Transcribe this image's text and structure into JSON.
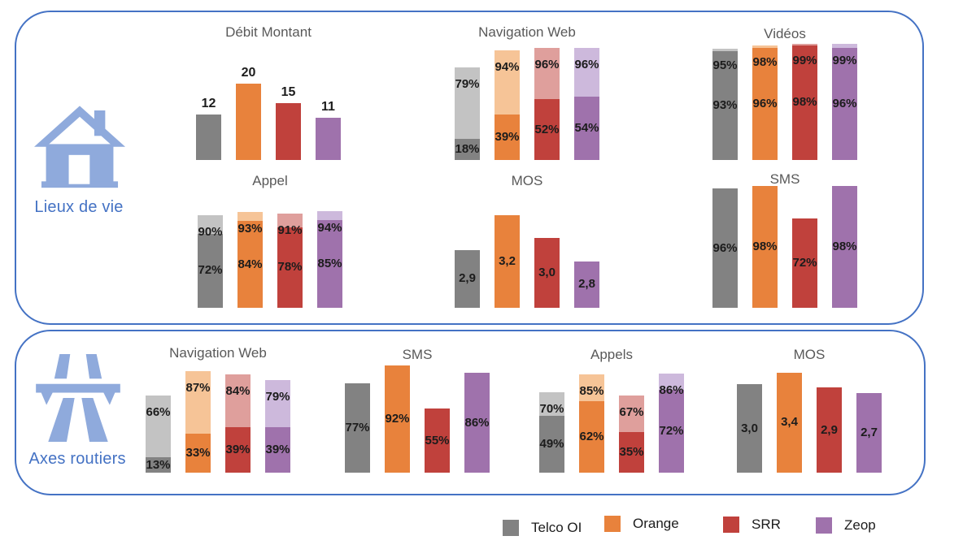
{
  "page_background": "#ffffff",
  "accent_blue": "#4472C4",
  "icon_blue": "#8FAADC",
  "sections": [
    {
      "id": "lieux-de-vie",
      "label": "Lieux de vie",
      "icon": "house-icon"
    },
    {
      "id": "axes-routiers",
      "label": "Axes routiers",
      "icon": "motorway-icon"
    }
  ],
  "legend": {
    "items": [
      {
        "label": "Telco OI",
        "color": "#828282",
        "color_light": "#C3C3C3"
      },
      {
        "label": "Orange",
        "color": "#E8823C",
        "color_light": "#F6C497"
      },
      {
        "label": "SRR",
        "color": "#C0413C",
        "color_light": "#DF9F9C"
      },
      {
        "label": "Zeop",
        "color": "#9F72AC",
        "color_light": "#CDB9DC"
      }
    ]
  },
  "chart_data": [
    {
      "id": "debit-montant",
      "section": "Lieux de vie",
      "type": "bar",
      "title": "Débit Montant",
      "categories": [
        "Telco OI",
        "Orange",
        "SRR",
        "Zeop"
      ],
      "values": [
        12,
        20,
        15,
        11
      ],
      "labels": [
        "12",
        "20",
        "15",
        "11"
      ],
      "label_position": "above",
      "ylim": [
        0,
        30
      ],
      "grid": false,
      "legend_position": "none"
    },
    {
      "id": "navigation-web-lieux",
      "section": "Lieux de vie",
      "type": "stacked-bar",
      "title": "Navigation Web",
      "categories": [
        "Telco OI",
        "Orange",
        "SRR",
        "Zeop"
      ],
      "series": [
        {
          "name": "high",
          "values": [
            79,
            94,
            96,
            96
          ],
          "labels": [
            "79%",
            "94%",
            "96%",
            "96%"
          ]
        },
        {
          "name": "low",
          "values": [
            18,
            39,
            52,
            54
          ],
          "labels": [
            "18%",
            "39%",
            "52%",
            "54%"
          ]
        }
      ],
      "ylim": [
        0,
        100
      ],
      "grid": false,
      "legend_position": "none"
    },
    {
      "id": "videos",
      "section": "Lieux de vie",
      "type": "stacked-bar",
      "title": "Vidéos",
      "categories": [
        "Telco OI",
        "Orange",
        "SRR",
        "Zeop"
      ],
      "series": [
        {
          "name": "high",
          "values": [
            95,
            98,
            99,
            99
          ],
          "labels": [
            "95%",
            "98%",
            "99%",
            "99%"
          ]
        },
        {
          "name": "low",
          "values": [
            93,
            96,
            98,
            96
          ],
          "labels": [
            "93%",
            "96%",
            "98%",
            "96%"
          ]
        }
      ],
      "ylim": [
        0,
        100
      ],
      "grid": false,
      "legend_position": "none"
    },
    {
      "id": "appel",
      "section": "Lieux de vie",
      "type": "stacked-bar",
      "title": "Appel",
      "categories": [
        "Telco OI",
        "Orange",
        "SRR",
        "Zeop"
      ],
      "series": [
        {
          "name": "high",
          "values": [
            90,
            93,
            91,
            94
          ],
          "labels": [
            "90%",
            "93%",
            "91%",
            "94%"
          ]
        },
        {
          "name": "low",
          "values": [
            72,
            84,
            78,
            85
          ],
          "labels": [
            "72%",
            "84%",
            "78%",
            "85%"
          ]
        }
      ],
      "ylim": [
        0,
        100
      ],
      "grid": false,
      "legend_position": "none"
    },
    {
      "id": "mos-lieux",
      "section": "Lieux de vie",
      "type": "bar",
      "title": "MOS",
      "categories": [
        "Telco OI",
        "Orange",
        "SRR",
        "Zeop"
      ],
      "values": [
        2.9,
        3.2,
        3.0,
        2.8
      ],
      "labels": [
        "2,9",
        "3,2",
        "3,0",
        "2,8"
      ],
      "label_position": "center",
      "ylim": [
        2.4,
        3.45
      ],
      "grid": false,
      "legend_position": "none"
    },
    {
      "id": "sms-lieux",
      "section": "Lieux de vie",
      "type": "bar",
      "title": "SMS",
      "categories": [
        "Telco OI",
        "Orange",
        "SRR",
        "Zeop"
      ],
      "values": [
        96,
        98,
        72,
        98
      ],
      "labels": [
        "96%",
        "98%",
        "72%",
        "98%"
      ],
      "label_position": "center",
      "ylim": [
        0,
        100
      ],
      "grid": false,
      "legend_position": "none"
    },
    {
      "id": "navigation-web-axes",
      "section": "Axes routiers",
      "type": "stacked-bar",
      "title": "Navigation Web",
      "categories": [
        "Telco OI",
        "Orange",
        "SRR",
        "Zeop"
      ],
      "series": [
        {
          "name": "high",
          "values": [
            66,
            87,
            84,
            79
          ],
          "labels": [
            "66%",
            "87%",
            "84%",
            "79%"
          ]
        },
        {
          "name": "low",
          "values": [
            13,
            33,
            39,
            39
          ],
          "labels": [
            "13%",
            "33%",
            "39%",
            "39%"
          ]
        }
      ],
      "ylim": [
        0,
        100
      ],
      "grid": false,
      "legend_position": "none"
    },
    {
      "id": "sms-axes",
      "section": "Axes routiers",
      "type": "bar",
      "title": "SMS",
      "categories": [
        "Telco OI",
        "Orange",
        "SRR",
        "Zeop"
      ],
      "values": [
        77,
        92,
        55,
        86
      ],
      "labels": [
        "77%",
        "92%",
        "55%",
        "86%"
      ],
      "label_position": "center",
      "ylim": [
        0,
        100
      ],
      "grid": false,
      "legend_position": "none"
    },
    {
      "id": "appels-axes",
      "section": "Axes routiers",
      "type": "stacked-bar",
      "title": "Appels",
      "categories": [
        "Telco OI",
        "Orange",
        "SRR",
        "Zeop"
      ],
      "series": [
        {
          "name": "high",
          "values": [
            70,
            85,
            67,
            86
          ],
          "labels": [
            "70%",
            "85%",
            "67%",
            "86%"
          ]
        },
        {
          "name": "low",
          "values": [
            49,
            62,
            35,
            72
          ],
          "labels": [
            "49%",
            "62%",
            "35%",
            "72%"
          ]
        }
      ],
      "ylim": [
        0,
        100
      ],
      "grid": false,
      "legend_position": "none"
    },
    {
      "id": "mos-axes",
      "section": "Axes routiers",
      "type": "bar",
      "title": "MOS",
      "categories": [
        "Telco OI",
        "Orange",
        "SRR",
        "Zeop"
      ],
      "values": [
        3.0,
        3.4,
        2.9,
        2.7
      ],
      "labels": [
        "3,0",
        "3,4",
        "2,9",
        "2,7"
      ],
      "label_position": "center",
      "ylim": [
        0,
        3.95
      ],
      "grid": false,
      "legend_position": "none"
    }
  ]
}
